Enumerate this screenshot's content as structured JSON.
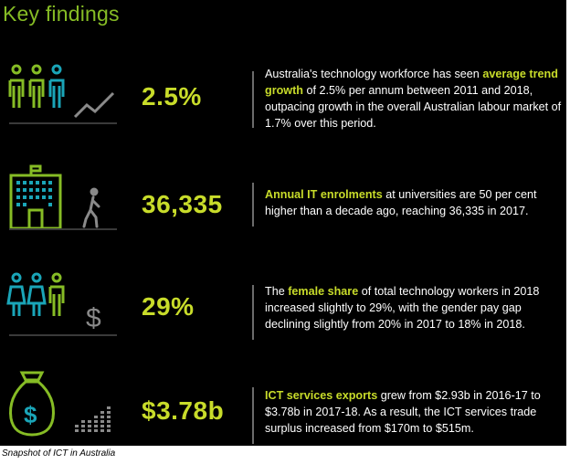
{
  "title": "Key findings",
  "colors": {
    "background": "#000000",
    "accent_green": "#86bc25",
    "stat_yellow": "#c8dc2a",
    "teal": "#1aa5b8",
    "gray": "#8a8a8a"
  },
  "findings": [
    {
      "stat": "2.5%",
      "icons": [
        "people-icon",
        "trend-line-icon"
      ],
      "text": [
        {
          "t": "Australia's technology workforce has seen ",
          "hl": false
        },
        {
          "t": "average trend growth",
          "hl": true
        },
        {
          "t": " of 2.5% per annum between 2011 and 2018, outpacing growth in the overall Australian labour market of 1.7% over this period.",
          "hl": false
        }
      ]
    },
    {
      "stat": "36,335",
      "icons": [
        "university-building-icon",
        "walking-person-icon"
      ],
      "text": [
        {
          "t": "Annual IT enrolments",
          "hl": true
        },
        {
          "t": " at universities are 50 per cent higher than a decade ago, reaching 36,335 in 2017.",
          "hl": false
        }
      ]
    },
    {
      "stat": "29%",
      "icons": [
        "women-icon",
        "dollar-icon"
      ],
      "text": [
        {
          "t": "The ",
          "hl": false
        },
        {
          "t": "female share",
          "hl": true
        },
        {
          "t": " of total technology workers in 2018 increased slightly to 29%, with the gender pay gap declining slightly from 20% in 2017 to 18% in 2018.",
          "hl": false
        }
      ]
    },
    {
      "stat": "$3.78b",
      "icons": [
        "money-bag-icon",
        "bar-graph-icon"
      ],
      "text": [
        {
          "t": "ICT services exports",
          "hl": true
        },
        {
          "t": " grew from $2.93b in 2016-17 to $3.78b in 2017-18. As a result, the ICT services trade surplus increased from $170m to $515m.",
          "hl": false
        }
      ]
    }
  ],
  "caption": "Snapshot of ICT in Australia"
}
